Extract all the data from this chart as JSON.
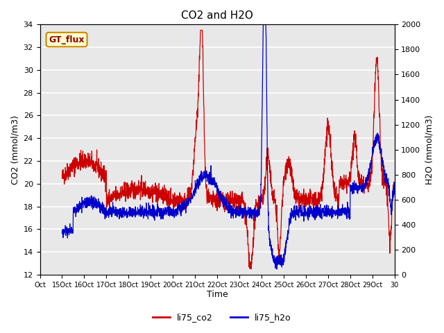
{
  "title": "CO2 and H2O",
  "xlabel": "Time",
  "ylabel_left": "CO2 (mmol/m3)",
  "ylabel_right": "H2O (mmol/m3)",
  "ylim_left": [
    12,
    34
  ],
  "ylim_right": [
    0,
    2000
  ],
  "yticks_left": [
    12,
    14,
    16,
    18,
    20,
    22,
    24,
    26,
    28,
    30,
    32,
    34
  ],
  "yticks_right": [
    0,
    200,
    400,
    600,
    800,
    1000,
    1200,
    1400,
    1600,
    1800,
    2000
  ],
  "xtick_labels": [
    "Oct",
    "15Oct",
    "16Oct",
    "17Oct",
    "18Oct",
    "19Oct",
    "20Oct",
    "21Oct",
    "22Oct",
    "23Oct",
    "24Oct",
    "25Oct",
    "26Oct",
    "27Oct",
    "28Oct",
    "29Oct",
    "30"
  ],
  "xtick_positions": [
    0,
    1,
    2,
    3,
    4,
    5,
    6,
    7,
    8,
    9,
    10,
    11,
    12,
    13,
    14,
    15,
    16
  ],
  "xlim": [
    0,
    16
  ],
  "co2_color": "#cc0000",
  "h2o_color": "#0000cc",
  "bg_color": "#e8e8e8",
  "gt_flux_bg": "#ffffcc",
  "gt_flux_border": "#cc8800",
  "legend_co2": "li75_co2",
  "legend_h2o": "li75_h2o",
  "linewidth": 0.9
}
